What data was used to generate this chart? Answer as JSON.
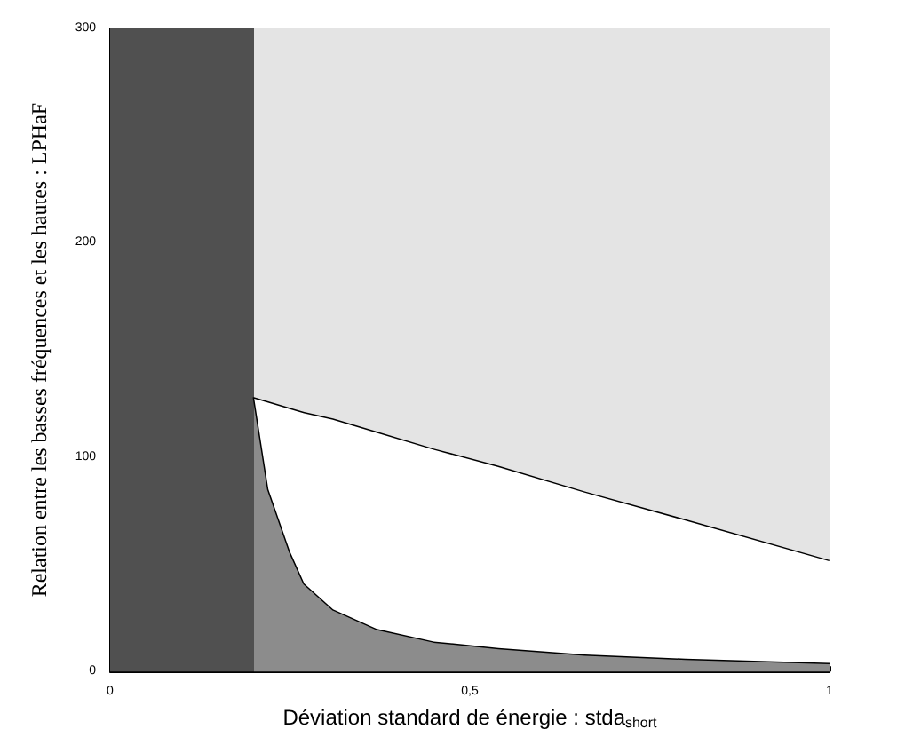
{
  "chart_data": {
    "type": "area",
    "stacked": true,
    "xlabel": "Déviation standard de énergie : stda$_{short}$",
    "ylabel": "Relation entre les basses fréquences et les hautes : LPHaF",
    "x": [
      0.2,
      0.22,
      0.25,
      0.27,
      0.31,
      0.37,
      0.45,
      0.54,
      0.66,
      0.8,
      1.0
    ],
    "series": [
      {
        "color": "#8c8c8c",
        "values": [
          128,
          85,
          56,
          41,
          29,
          20,
          14,
          11,
          8,
          6,
          4
        ]
      },
      {
        "color": "#ffffff",
        "values": [
          0,
          41,
          67,
          80,
          89,
          92,
          90,
          85,
          76,
          65,
          48
        ]
      },
      {
        "color": "#e4e4e4",
        "values": [
          172,
          174,
          177,
          179,
          182,
          188,
          196,
          204,
          216,
          229,
          248
        ]
      }
    ],
    "bands": [
      {
        "axis": "x",
        "from": 0,
        "to": 0.2,
        "color": "#505050"
      }
    ],
    "xlim": [
      0,
      1
    ],
    "xticks": [
      0,
      {
        "value": 0.5,
        "label": "0,5"
      },
      1
    ],
    "ylim": [
      0,
      300
    ],
    "yticks": [
      0,
      100,
      200,
      300
    ],
    "grid": false
  }
}
